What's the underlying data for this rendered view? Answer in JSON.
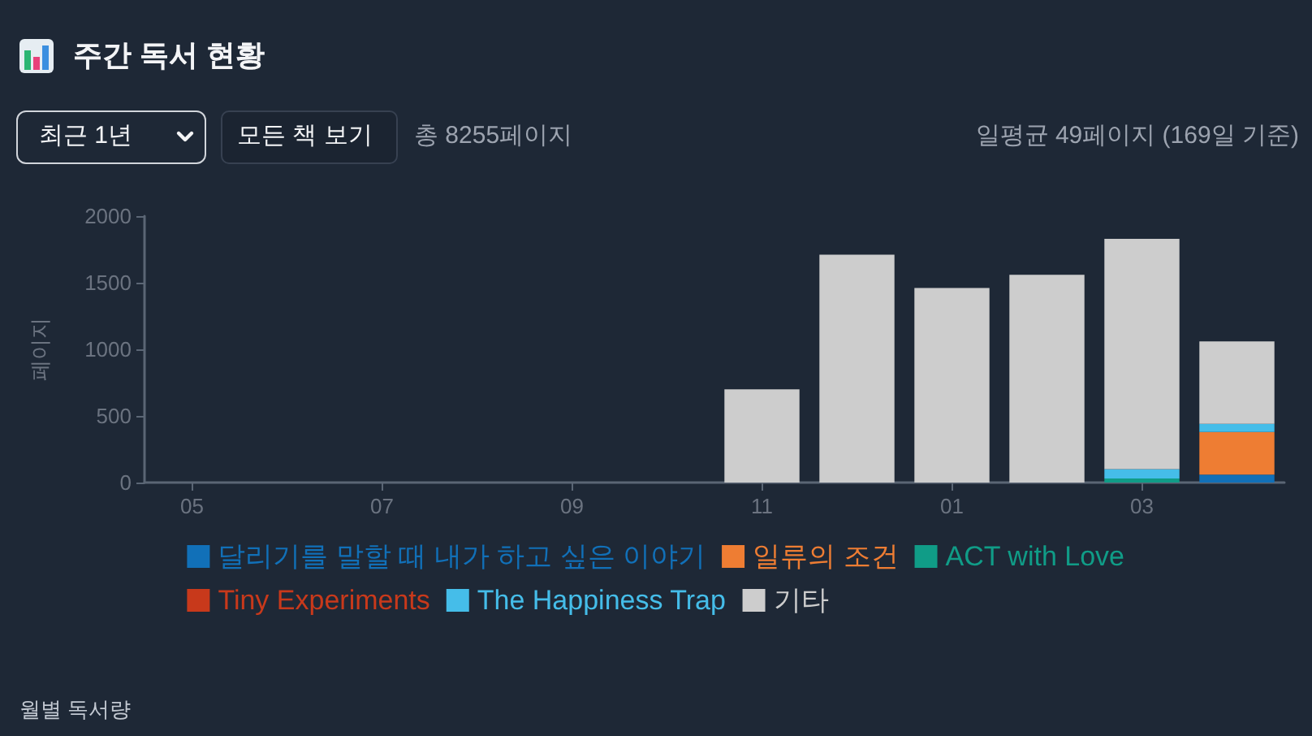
{
  "chart_data": {
    "type": "bar",
    "title": "주간 독서 현황",
    "ylabel": "페이지",
    "annotations": [
      "최근 1년",
      "모든 책 보기",
      "총 8255페이지",
      "일평균 49페이지 (169일 기준)",
      "월별 독서량"
    ],
    "categories": [
      "05",
      null,
      "07",
      null,
      "09",
      null,
      "11",
      null,
      "01",
      null,
      "03",
      null
    ],
    "series": [
      {
        "name": "달리기를 말할 때 내가 하고 싶은 이야기",
        "color": "#1170b8",
        "values": [
          null,
          null,
          null,
          null,
          null,
          null,
          null,
          null,
          null,
          null,
          null,
          60
        ]
      },
      {
        "name": "일류의 조건",
        "color": "#ee7d33",
        "values": [
          null,
          null,
          null,
          null,
          null,
          null,
          null,
          null,
          null,
          null,
          null,
          320
        ]
      },
      {
        "name": "ACT with Love",
        "color": "#109c87",
        "values": [
          null,
          null,
          null,
          null,
          null,
          null,
          null,
          null,
          null,
          null,
          30,
          null
        ]
      },
      {
        "name": "Tiny Experiments",
        "color": "#c8391b",
        "values": [
          null,
          null,
          null,
          null,
          null,
          null,
          null,
          null,
          null,
          null,
          null,
          null
        ]
      },
      {
        "name": "The Happiness Trap",
        "color": "#45bde9",
        "values": [
          null,
          null,
          null,
          null,
          null,
          null,
          null,
          null,
          null,
          null,
          70,
          60
        ]
      },
      {
        "name": "기타",
        "color": "#cdcdcd",
        "values": [
          null,
          null,
          null,
          null,
          null,
          null,
          700,
          1710,
          1460,
          1560,
          1730,
          620
        ]
      }
    ],
    "stacked": true,
    "ylim": [
      0,
      2000
    ],
    "yticks": [
      0,
      500,
      1000,
      1500,
      2000
    ],
    "grid": false,
    "legend": "bottom"
  }
}
